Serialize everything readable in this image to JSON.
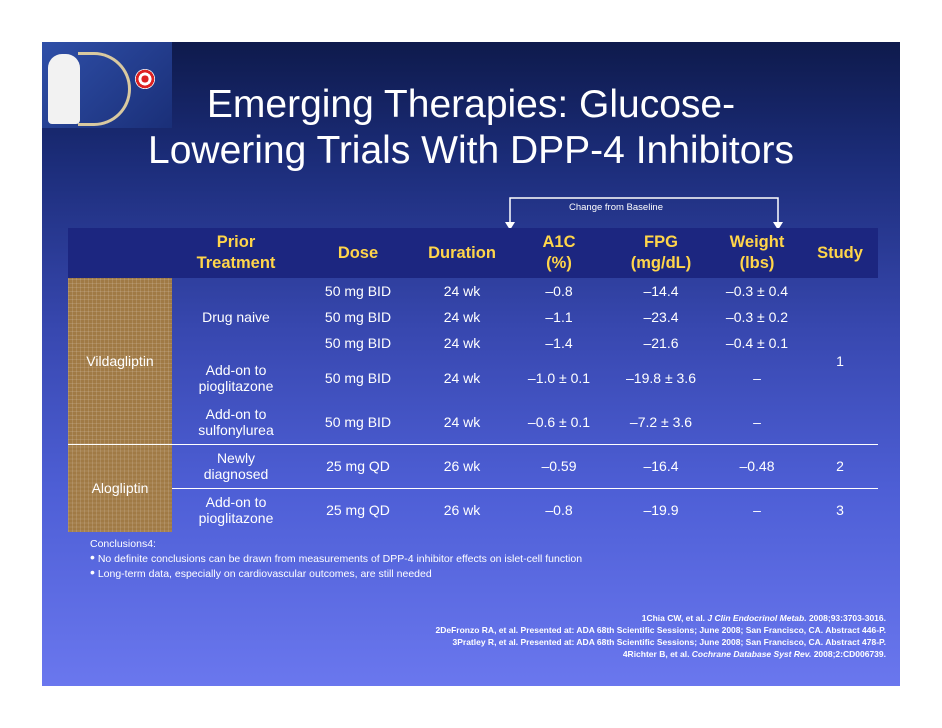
{
  "title_line1": "Emerging Therapies: Glucose-",
  "title_line2": "Lowering Trials With DPP-4 Inhibitors",
  "change_from_baseline": "Change from Baseline",
  "headers": {
    "prior_1": "Prior",
    "prior_2": "Treatment",
    "dose": "Dose",
    "duration": "Duration",
    "a1c_1": "A1C",
    "a1c_2": "(%)",
    "fpg_1": "FPG",
    "fpg_2": "(mg/dL)",
    "weight_1": "Weight",
    "weight_2": "(lbs)",
    "study": "Study"
  },
  "vilda": {
    "drug": "Vildagliptin",
    "study": "1",
    "rows": [
      {
        "prior": "",
        "dose": "50 mg BID",
        "duration": "24 wk",
        "a1c": "–0.8",
        "fpg": "–14.4",
        "weight": "–0.3 ± 0.4"
      },
      {
        "prior": "Drug naive",
        "dose": "50 mg BID",
        "duration": "24 wk",
        "a1c": "–1.1",
        "fpg": "–23.4",
        "weight": "–0.3 ± 0.2"
      },
      {
        "prior": "",
        "dose": "50 mg BID",
        "duration": "24 wk",
        "a1c": "–1.4",
        "fpg": "–21.6",
        "weight": "–0.4 ± 0.1"
      },
      {
        "prior_1": "Add-on to",
        "prior_2": "pioglitazone",
        "dose": "50 mg BID",
        "duration": "24 wk",
        "a1c": "–1.0 ± 0.1",
        "fpg": "–19.8 ± 3.6",
        "weight": "–"
      },
      {
        "prior_1": "Add-on to",
        "prior_2": "sulfonylurea",
        "dose": "50 mg BID",
        "duration": "24 wk",
        "a1c": "–0.6 ± 0.1",
        "fpg": "–7.2 ± 3.6",
        "weight": "–"
      }
    ]
  },
  "alo": {
    "drug": "Alogliptin",
    "rows": [
      {
        "prior_1": "Newly",
        "prior_2": "diagnosed",
        "dose": "25 mg QD",
        "duration": "26 wk",
        "a1c": "–0.59",
        "fpg": "–16.4",
        "weight": "–0.48",
        "study": "2"
      },
      {
        "prior_1": "Add-on to",
        "prior_2": "pioglitazone",
        "dose": "25 mg QD",
        "duration": "26 wk",
        "a1c": "–0.8",
        "fpg": "–19.9",
        "weight": "–",
        "study": "3"
      }
    ]
  },
  "conclusions": {
    "heading": "Conclusions4:",
    "bullet_glyph": "•",
    "items": [
      "No definite conclusions can be drawn from measurements of DPP-4 inhibitor effects on islet-cell function",
      "Long-term data, especially on cardiovascular outcomes, are still needed"
    ]
  },
  "references": [
    {
      "pre": "1Chia CW, et al. ",
      "journal": "J Clin Endocrinol Metab.",
      "post": " 2008;93:3703-3016."
    },
    {
      "pre": "2DeFronzo RA, et al. Presented at: ADA 68th Scientific Sessions; June 2008; San Francisco, CA. Abstract 446-P.",
      "journal": "",
      "post": ""
    },
    {
      "pre": "3Pratley R, et al. Presented at: ADA 68th Scientific Sessions; June 2008; San Francisco, CA. Abstract 478-P.",
      "journal": "",
      "post": ""
    },
    {
      "pre": "4Richter B, et al. ",
      "journal": "Cochrane Database Syst Rev.",
      "post": " 2008;2:CD006739."
    }
  ],
  "colors": {
    "header_text": "#ffd54a",
    "header_band": "#1c2680",
    "drug_cell": "#a07a45"
  }
}
